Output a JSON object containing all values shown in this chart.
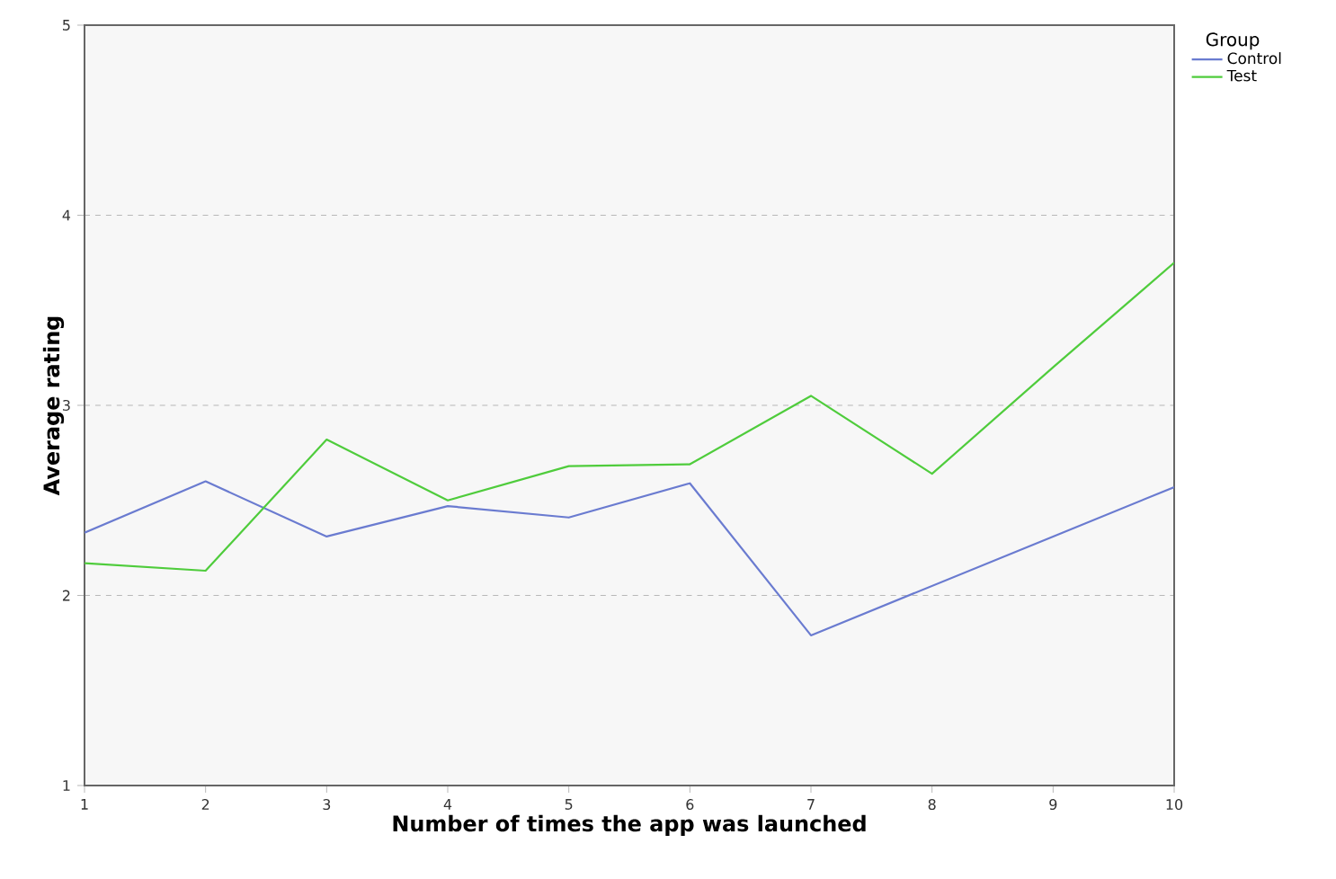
{
  "chart_data": {
    "type": "line",
    "xlabel": "Number of times the app was launched",
    "ylabel": "Average rating",
    "legend_title": "Group",
    "legend": "top right",
    "x": [
      1,
      2,
      3,
      4,
      5,
      6,
      7,
      8,
      9,
      10
    ],
    "series": [
      {
        "name": "Control",
        "color": "#6a7bd0",
        "values": [
          2.33,
          2.6,
          2.31,
          2.47,
          2.41,
          2.59,
          1.79,
          2.05,
          2.31,
          2.57
        ]
      },
      {
        "name": "Test",
        "color": "#4fcc3c",
        "values": [
          2.17,
          2.13,
          2.82,
          2.5,
          2.68,
          2.69,
          3.05,
          2.64,
          3.2,
          3.75
        ]
      }
    ],
    "xlim": [
      1,
      10
    ],
    "ylim": [
      1,
      5
    ],
    "xticks": [
      1,
      2,
      3,
      4,
      5,
      6,
      7,
      8,
      9,
      10
    ],
    "yticks": [
      1,
      2,
      3,
      4,
      5
    ],
    "grid": "y",
    "line_style": "solid"
  }
}
